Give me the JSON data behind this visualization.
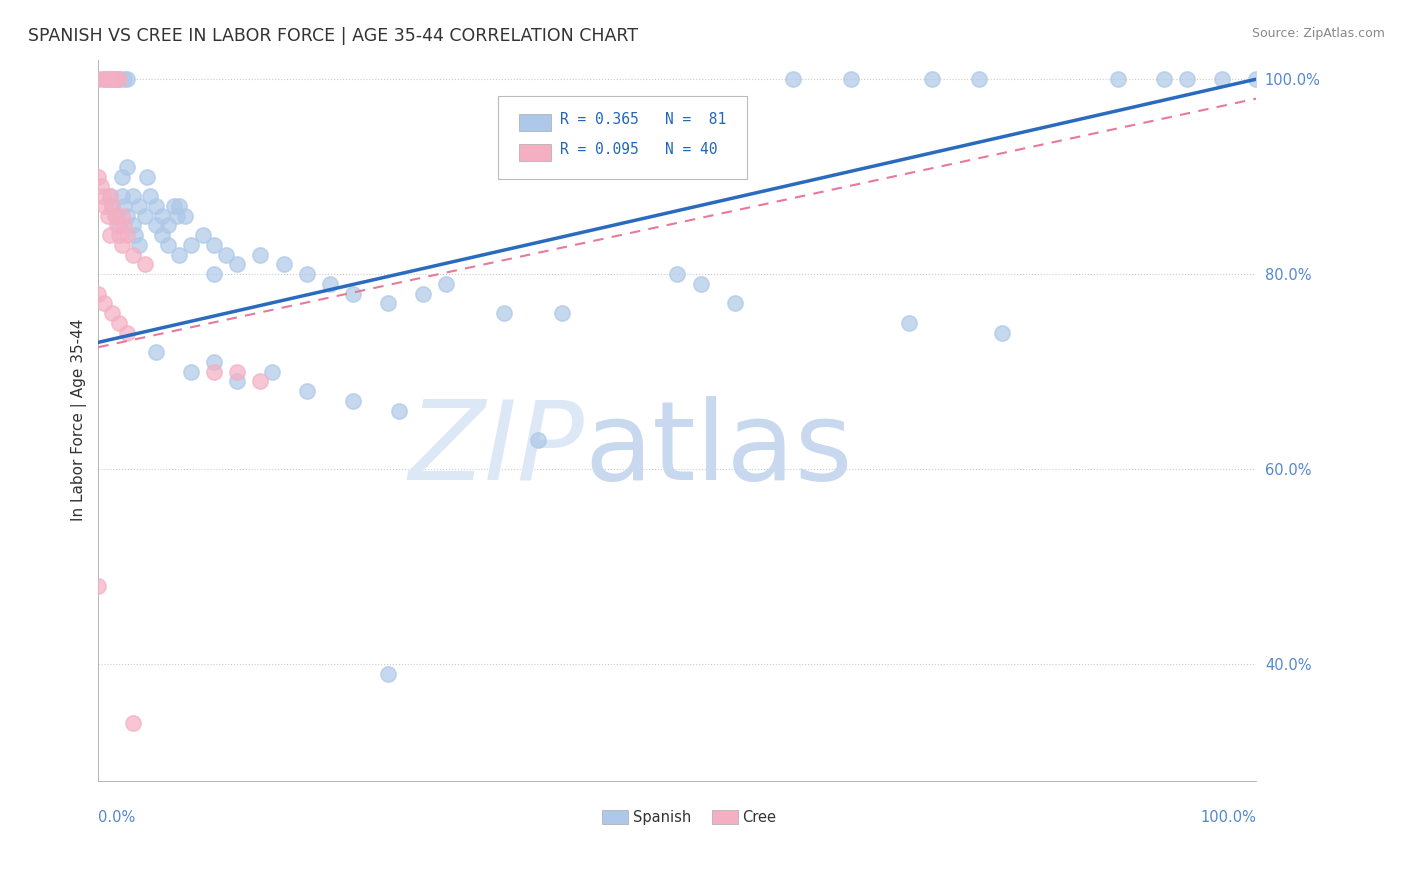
{
  "title": "SPANISH VS CREE IN LABOR FORCE | AGE 35-44 CORRELATION CHART",
  "source_text": "Source: ZipAtlas.com",
  "ylabel": "In Labor Force | Age 35-44",
  "xlim": [
    0.0,
    1.0
  ],
  "ylim": [
    0.28,
    1.02
  ],
  "yticks": [
    0.4,
    0.6,
    0.8,
    1.0
  ],
  "ytick_labels": [
    "40.0%",
    "60.0%",
    "80.0%",
    "100.0%"
  ],
  "spanish_color": "#adc8e8",
  "cree_color": "#f4afc3",
  "spanish_line_color": "#2a6bbf",
  "cree_line_color": "#e8799a",
  "background_color": "#ffffff",
  "watermark_color": "#dce8f5",
  "title_fontsize": 12.5,
  "axis_label_fontsize": 11,
  "tick_fontsize": 10.5,
  "spanish_line_x0": 0.0,
  "spanish_line_y0": 0.73,
  "spanish_line_x1": 1.0,
  "spanish_line_y1": 1.0,
  "cree_line_x0": 0.0,
  "cree_line_y0": 0.725,
  "cree_line_x1": 1.0,
  "cree_line_y1": 0.98
}
